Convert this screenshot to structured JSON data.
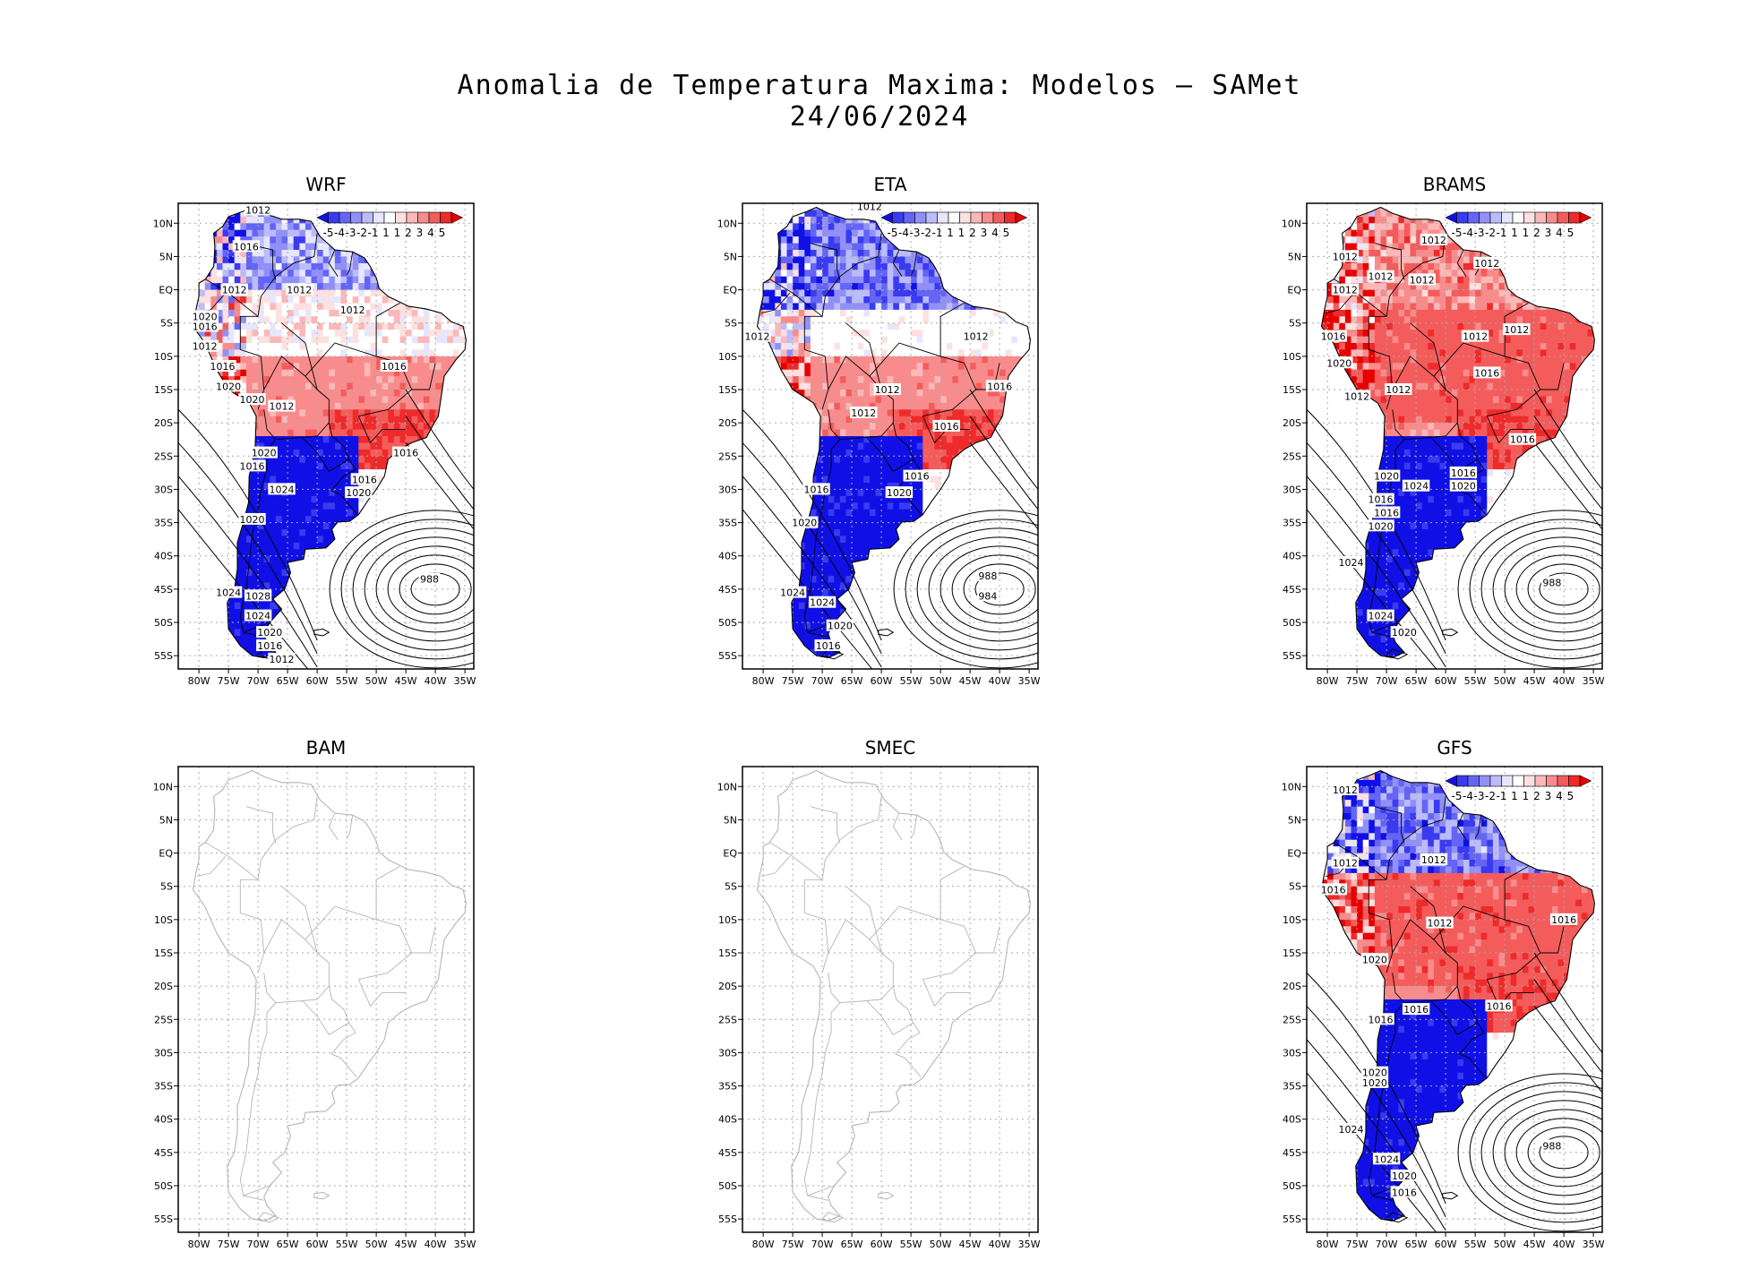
{
  "title": "Anomalia de Temperatura Maxima: Modelos — SAMet",
  "date": "24/06/2024",
  "lat_labels": [
    "10N",
    "5N",
    "EQ",
    "5S",
    "10S",
    "15S",
    "20S",
    "25S",
    "30S",
    "35S",
    "40S",
    "45S",
    "50S",
    "55S"
  ],
  "lon_labels": [
    "80W",
    "75W",
    "70W",
    "65W",
    "60W",
    "55W",
    "50W",
    "45W",
    "40W",
    "35W"
  ],
  "colorbar": {
    "labels": [
      "-5",
      "-4",
      "-3",
      "-2",
      "-1",
      "1",
      "1",
      "2",
      "3",
      "4",
      "5"
    ],
    "colors": [
      "#1010e6",
      "#3a3af0",
      "#6464f5",
      "#9090f8",
      "#bcbcfb",
      "#e6e6fd",
      "#ffffff",
      "#fde0e0",
      "#fbb8b8",
      "#f88c8c",
      "#f45c5c",
      "#ee2a2a",
      "#e60000"
    ]
  },
  "panels": [
    {
      "name": "WRF",
      "has_data": true,
      "isobars": [
        {
          "t": "1012",
          "x": -70,
          "y": 12
        },
        {
          "t": "1016",
          "x": -72,
          "y": 6.5
        },
        {
          "t": "1012",
          "x": -74,
          "y": 0
        },
        {
          "t": "1012",
          "x": -63,
          "y": 0
        },
        {
          "t": "1012",
          "x": -54,
          "y": -3
        },
        {
          "t": "1020",
          "x": -79,
          "y": -4
        },
        {
          "t": "1016",
          "x": -79,
          "y": -5.5
        },
        {
          "t": "1012",
          "x": -79,
          "y": -8.5
        },
        {
          "t": "1016",
          "x": -76,
          "y": -11.5
        },
        {
          "t": "1016",
          "x": -47,
          "y": -11.5
        },
        {
          "t": "1020",
          "x": -75,
          "y": -14.5
        },
        {
          "t": "1020",
          "x": -71,
          "y": -16.5
        },
        {
          "t": "1012",
          "x": -66,
          "y": -17.5
        },
        {
          "t": "1016",
          "x": -45,
          "y": -24.5
        },
        {
          "t": "1020",
          "x": -69,
          "y": -24.5
        },
        {
          "t": "1016",
          "x": -71,
          "y": -26.5
        },
        {
          "t": "1024",
          "x": -66,
          "y": -30
        },
        {
          "t": "1016",
          "x": -52,
          "y": -28.5
        },
        {
          "t": "1020",
          "x": -53,
          "y": -30.5
        },
        {
          "t": "1020",
          "x": -71,
          "y": -34.5
        },
        {
          "t": "1024",
          "x": -75,
          "y": -45.5
        },
        {
          "t": "1028",
          "x": -70,
          "y": -46
        },
        {
          "t": "1024",
          "x": -70,
          "y": -49
        },
        {
          "t": "1020",
          "x": -68,
          "y": -51.5
        },
        {
          "t": "1016",
          "x": -68,
          "y": -53.5
        },
        {
          "t": "1012",
          "x": -66,
          "y": -55.5
        },
        {
          "t": "988",
          "x": -41,
          "y": -43.5
        }
      ]
    },
    {
      "name": "ETA",
      "has_data": true,
      "isobars": [
        {
          "t": "1012",
          "x": -62,
          "y": 12.5
        },
        {
          "t": "1012",
          "x": -81,
          "y": -7
        },
        {
          "t": "1012",
          "x": -44,
          "y": -7
        },
        {
          "t": "1016",
          "x": -40,
          "y": -14.5
        },
        {
          "t": "1012",
          "x": -59,
          "y": -15
        },
        {
          "t": "1012",
          "x": -63,
          "y": -18.5
        },
        {
          "t": "1016",
          "x": -49,
          "y": -20.5
        },
        {
          "t": "1016",
          "x": -54,
          "y": -28
        },
        {
          "t": "1016",
          "x": -71,
          "y": -30
        },
        {
          "t": "1020",
          "x": -57,
          "y": -30.5
        },
        {
          "t": "1020",
          "x": -73,
          "y": -35
        },
        {
          "t": "1024",
          "x": -75,
          "y": -45.5
        },
        {
          "t": "1024",
          "x": -70,
          "y": -47
        },
        {
          "t": "1020",
          "x": -67,
          "y": -50.5
        },
        {
          "t": "1016",
          "x": -69,
          "y": -53.5
        },
        {
          "t": "988",
          "x": -42,
          "y": -43
        },
        {
          "t": "984",
          "x": -42,
          "y": -46
        }
      ]
    },
    {
      "name": "BRAMS",
      "has_data": true,
      "isobars": [
        {
          "t": "1012",
          "x": -62,
          "y": 7.5
        },
        {
          "t": "1012",
          "x": -77,
          "y": 5
        },
        {
          "t": "1012",
          "x": -53,
          "y": 4
        },
        {
          "t": "1012",
          "x": -71,
          "y": 2
        },
        {
          "t": "1012",
          "x": -64,
          "y": 1.5
        },
        {
          "t": "1012",
          "x": -77,
          "y": 0
        },
        {
          "t": "1012",
          "x": -48,
          "y": -6
        },
        {
          "t": "1012",
          "x": -55,
          "y": -7
        },
        {
          "t": "1016",
          "x": -79,
          "y": -7
        },
        {
          "t": "1020",
          "x": -78,
          "y": -11
        },
        {
          "t": "1016",
          "x": -53,
          "y": -12.5
        },
        {
          "t": "1012",
          "x": -75,
          "y": -16
        },
        {
          "t": "1012",
          "x": -68,
          "y": -15
        },
        {
          "t": "1016",
          "x": -47,
          "y": -22.5
        },
        {
          "t": "1016",
          "x": -57,
          "y": -27.5
        },
        {
          "t": "1020",
          "x": -70,
          "y": -28
        },
        {
          "t": "1024",
          "x": -65,
          "y": -29.5
        },
        {
          "t": "1020",
          "x": -57,
          "y": -29.5
        },
        {
          "t": "1016",
          "x": -71,
          "y": -31.5
        },
        {
          "t": "1016",
          "x": -70,
          "y": -33.5
        },
        {
          "t": "1020",
          "x": -71,
          "y": -35.5
        },
        {
          "t": "1024",
          "x": -76,
          "y": -41
        },
        {
          "t": "1024",
          "x": -71,
          "y": -49
        },
        {
          "t": "1020",
          "x": -67,
          "y": -51.5
        },
        {
          "t": "988",
          "x": -42,
          "y": -44
        }
      ]
    },
    {
      "name": "BAM",
      "has_data": false,
      "isobars": []
    },
    {
      "name": "SMEC",
      "has_data": false,
      "isobars": []
    },
    {
      "name": "GFS",
      "has_data": true,
      "isobars": [
        {
          "t": "1012",
          "x": -77,
          "y": 9.5
        },
        {
          "t": "1012",
          "x": -77,
          "y": -1.5
        },
        {
          "t": "1012",
          "x": -62,
          "y": -1
        },
        {
          "t": "1016",
          "x": -79,
          "y": -5.5
        },
        {
          "t": "1012",
          "x": -61,
          "y": -10.5
        },
        {
          "t": "1016",
          "x": -40,
          "y": -10
        },
        {
          "t": "1020",
          "x": -72,
          "y": -16
        },
        {
          "t": "1016",
          "x": -51,
          "y": -23
        },
        {
          "t": "1016",
          "x": -71,
          "y": -25
        },
        {
          "t": "1016",
          "x": -65,
          "y": -23.5
        },
        {
          "t": "1020",
          "x": -72,
          "y": -33
        },
        {
          "t": "1020",
          "x": -72,
          "y": -34.5
        },
        {
          "t": "1024",
          "x": -76,
          "y": -41.5
        },
        {
          "t": "1024",
          "x": -70,
          "y": -46
        },
        {
          "t": "1020",
          "x": -67,
          "y": -48.5
        },
        {
          "t": "1016",
          "x": -67,
          "y": -51
        },
        {
          "t": "988",
          "x": -42,
          "y": -44
        }
      ]
    }
  ]
}
